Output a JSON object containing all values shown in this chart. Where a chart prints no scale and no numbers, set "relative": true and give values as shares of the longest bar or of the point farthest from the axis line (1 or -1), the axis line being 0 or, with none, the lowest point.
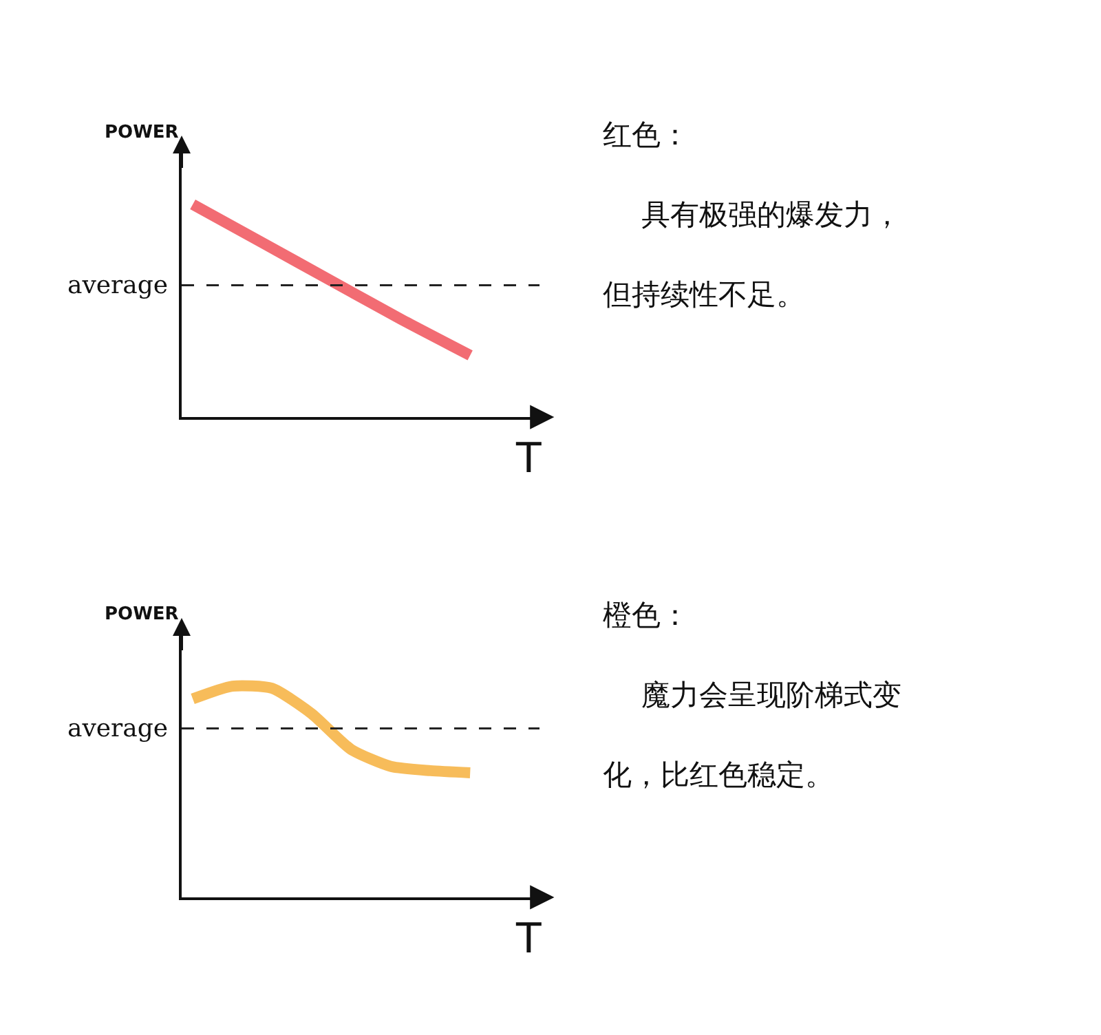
{
  "chart_data": [
    {
      "type": "line",
      "relative": true,
      "ylabel": "POWER",
      "xlabel": "T",
      "categories": [
        null,
        null,
        null,
        null,
        null
      ],
      "series": [
        {
          "color": "#ee3b45",
          "values": [
            1,
            0.82,
            0.64,
            0.46,
            0.29
          ]
        }
      ],
      "ref_lines": [
        {
          "axis": "y",
          "value": 0.62,
          "label": "average",
          "color": "#222222",
          "line_style": "dashed"
        }
      ],
      "marker": "none",
      "line_style": "solid"
    },
    {
      "type": "other",
      "title": "红色：",
      "annotations": [
        "具有极强的爆发力，",
        "但持续性不足。"
      ]
    },
    {
      "type": "line",
      "relative": true,
      "ylabel": "POWER",
      "xlabel": "T",
      "categories": [
        null,
        null,
        null,
        null,
        null,
        null,
        null,
        null
      ],
      "series": [
        {
          "color": "#f5a623",
          "values": [
            0.94,
            1,
            0.99,
            0.87,
            0.7,
            0.62,
            0.6,
            0.59
          ]
        }
      ],
      "ref_lines": [
        {
          "axis": "y",
          "value": 0.8,
          "label": "average",
          "color": "#222222",
          "line_style": "dashed"
        }
      ],
      "marker": "none",
      "line_style": "solid"
    },
    {
      "type": "other",
      "title": "橙色：",
      "annotations": [
        "魔力会呈现阶梯式变",
        "化，比红色稳定。"
      ]
    }
  ]
}
